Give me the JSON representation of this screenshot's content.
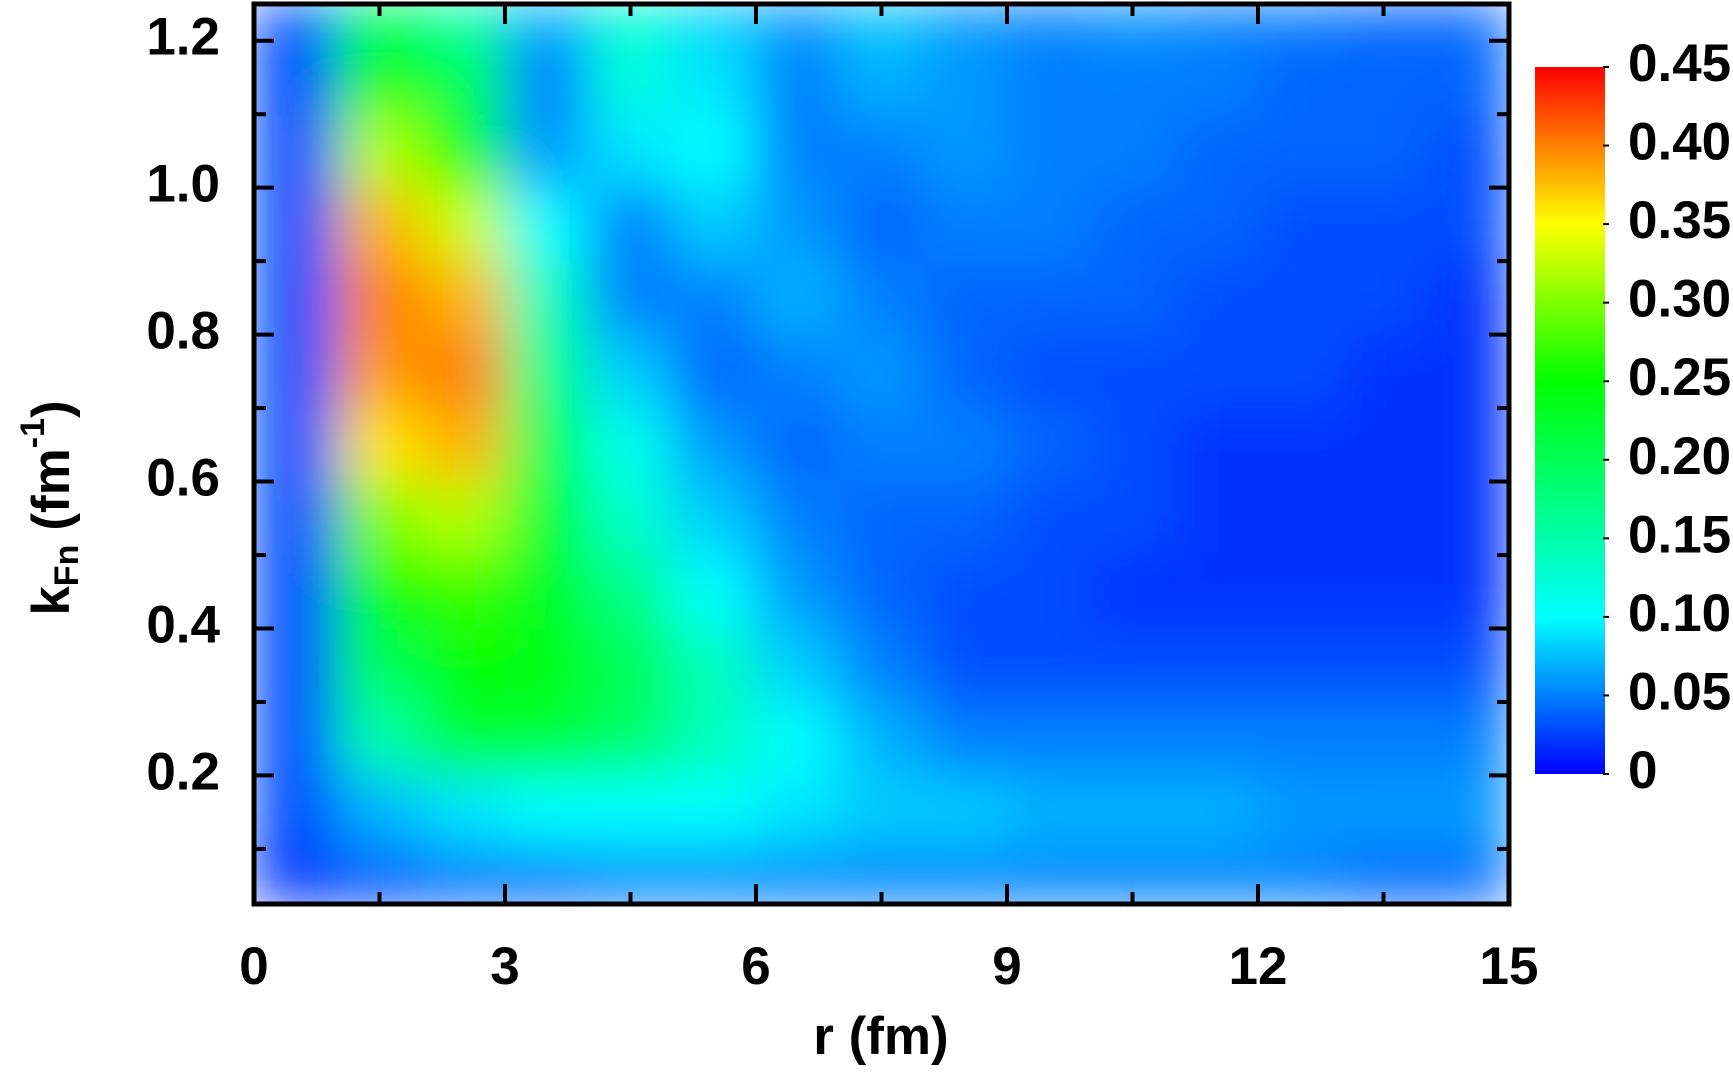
{
  "chart_data": {
    "type": "heatmap",
    "x_label": "r (fm)",
    "y_label": {
      "text": "k",
      "subscript": "Fn",
      "unit": "(fm",
      "superscript": "-1",
      "close": ")"
    },
    "xlim": [
      0,
      15
    ],
    "xticks": [
      0,
      3,
      6,
      9,
      12,
      15
    ],
    "xminorticks": [
      1.5,
      4.5,
      7.5,
      10.5,
      13.5
    ],
    "ylim": [
      0.025,
      1.25
    ],
    "yticks": [
      0.2,
      0.4,
      0.6,
      0.8,
      {
        "value": 1,
        "label": "1.0"
      },
      1.2
    ],
    "yminorticks": [
      0.1,
      0.3,
      0.5,
      0.7,
      0.9,
      1.1
    ],
    "xbins": [
      0,
      1,
      2,
      3,
      4,
      5,
      6,
      7,
      8,
      9,
      10,
      11,
      12,
      13,
      14,
      15
    ],
    "ybins": [
      0.025,
      0.1,
      0.2,
      0.3,
      0.4,
      0.5,
      0.6,
      0.7,
      0.8,
      0.9,
      1.0,
      1.1,
      1.2,
      1.25
    ],
    "z": [
      [
        0.02,
        0.03,
        0.04,
        0.04,
        0.05,
        0.05,
        0.05,
        0.05,
        0.05,
        0.05,
        0.05,
        0.05,
        0.05,
        0.04,
        0.04
      ],
      [
        0.03,
        0.07,
        0.09,
        0.1,
        0.1,
        0.1,
        0.09,
        0.08,
        0.08,
        0.07,
        0.07,
        0.07,
        0.06,
        0.06,
        0.06
      ],
      [
        0.03,
        0.15,
        0.22,
        0.22,
        0.19,
        0.14,
        0.1,
        0.07,
        0.05,
        0.05,
        0.05,
        0.05,
        0.05,
        0.05,
        0.05
      ],
      [
        0.03,
        0.2,
        0.25,
        0.24,
        0.2,
        0.14,
        0.08,
        0.05,
        0.03,
        0.03,
        0.03,
        0.03,
        0.03,
        0.03,
        0.03
      ],
      [
        0.03,
        0.25,
        0.27,
        0.23,
        0.17,
        0.1,
        0.06,
        0.04,
        0.03,
        0.03,
        0.02,
        0.02,
        0.02,
        0.02,
        0.02
      ],
      [
        0.03,
        0.3,
        0.32,
        0.22,
        0.13,
        0.08,
        0.05,
        0.04,
        0.04,
        0.03,
        0.03,
        0.02,
        0.02,
        0.02,
        0.02
      ],
      [
        0.03,
        0.36,
        0.38,
        0.2,
        0.11,
        0.06,
        0.04,
        0.05,
        0.05,
        0.04,
        0.03,
        0.02,
        0.02,
        0.02,
        0.02
      ],
      [
        0.03,
        0.39,
        0.4,
        0.17,
        0.08,
        0.04,
        0.05,
        0.06,
        0.04,
        0.03,
        0.03,
        0.03,
        0.03,
        0.02,
        0.02
      ],
      [
        0.03,
        0.4,
        0.38,
        0.14,
        0.05,
        0.05,
        0.07,
        0.05,
        0.04,
        0.04,
        0.04,
        0.03,
        0.03,
        0.03,
        0.02
      ],
      [
        0.03,
        0.38,
        0.33,
        0.1,
        0.05,
        0.08,
        0.06,
        0.04,
        0.05,
        0.05,
        0.04,
        0.04,
        0.03,
        0.03,
        0.03
      ],
      [
        0.03,
        0.32,
        0.25,
        0.06,
        0.09,
        0.1,
        0.05,
        0.05,
        0.06,
        0.05,
        0.05,
        0.04,
        0.04,
        0.04,
        0.03
      ],
      [
        0.03,
        0.25,
        0.2,
        0.05,
        0.12,
        0.09,
        0.05,
        0.07,
        0.06,
        0.05,
        0.05,
        0.05,
        0.04,
        0.04,
        0.04
      ],
      [
        0.03,
        0.2,
        0.15,
        0.07,
        0.13,
        0.08,
        0.06,
        0.08,
        0.06,
        0.05,
        0.06,
        0.05,
        0.05,
        0.04,
        0.04
      ]
    ],
    "zlim": [
      0,
      0.45
    ],
    "zticks": [
      0,
      0.05,
      {
        "value": 0.1,
        "label": "0.10"
      },
      0.15,
      {
        "value": 0.2,
        "label": "0.20"
      },
      0.25,
      {
        "value": 0.3,
        "label": "0.30"
      },
      0.35,
      {
        "value": 0.4,
        "label": "0.40"
      },
      0.45
    ],
    "colorscale": [
      [
        0,
        "#0000ff"
      ],
      [
        0.1,
        "#00ffff"
      ],
      [
        0.25,
        "#00ff00"
      ],
      [
        0.35,
        "#ffff00"
      ],
      [
        0.45,
        "#ff0000"
      ]
    ]
  }
}
